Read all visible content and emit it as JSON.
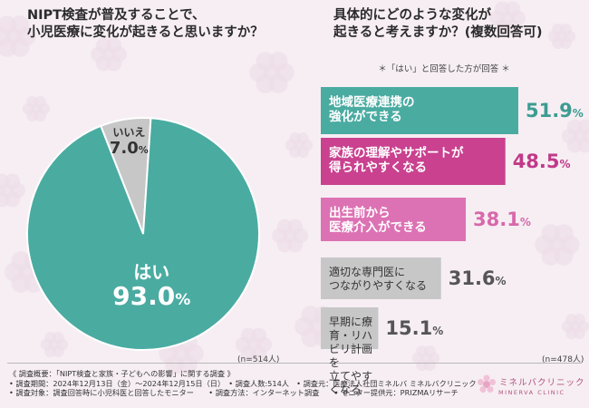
{
  "q1": {
    "title": "NIPT検査が普及することで、\n小児医療に変化が起きると思いますか？",
    "n_label": "(n=514人)"
  },
  "q2": {
    "title": "具体的にどのような変化が\n起きると考えますか？(複数回答可)",
    "note": "＊「はい」と回答した方が回答 ＊",
    "n_label": "(n=478人)"
  },
  "chart_data": [
    {
      "type": "pie",
      "title": "NIPT検査が普及することで、小児医療に変化が起きると思いますか？",
      "unit": "%",
      "slices": [
        {
          "label": "はい",
          "value": 93.0,
          "value_label": "93.0",
          "color": "#4aaba1"
        },
        {
          "label": "いいえ",
          "value": 7.0,
          "value_label": "7.0",
          "color": "#c7c7c7"
        }
      ]
    },
    {
      "type": "bar",
      "orientation": "horizontal",
      "title": "具体的にどのような変化が起きると考えますか？(複数回答可)",
      "unit": "%",
      "categories": [
        "地域医療連携の\n強化ができる",
        "家族の理解やサポートが\n得られやすくなる",
        "出生前から\n医療介入ができる",
        "適切な専門医に\nつながりやすくなる",
        "早期に療育・リハビリ計画を\n立てやすくなる"
      ],
      "values": [
        51.9,
        48.5,
        38.1,
        31.6,
        15.1
      ],
      "value_labels": [
        "51.9",
        "48.5",
        "38.1",
        "31.6",
        "15.1"
      ],
      "colors": [
        "#4aaba1",
        "#c9418f",
        "#dc72b3",
        "#c7c7c7",
        "#c7c7c7"
      ],
      "value_colors": [
        "#3d9c92",
        "#c03a88",
        "#d868ab",
        "#555555",
        "#555555"
      ]
    }
  ],
  "footer": [
    "《 調査概要：「NIPT検査と家族・子どもへの影響」に関する調査 》",
    "• 調査期間：2024年12月13日（金）～2024年12月15日（日）　• 調査人数:514人　• 調査元：医療法人社団ミネルバ ミネルバクリニック",
    "• 調査対象：調査回答時に小児科医と回答したモニター　　• 調査方法：インターネット調査　　• モニター提供元：PRIZMAリサーチ"
  ],
  "logo": {
    "name": "ミネルバクリニック",
    "sub": "MINERVA CLINIC"
  }
}
